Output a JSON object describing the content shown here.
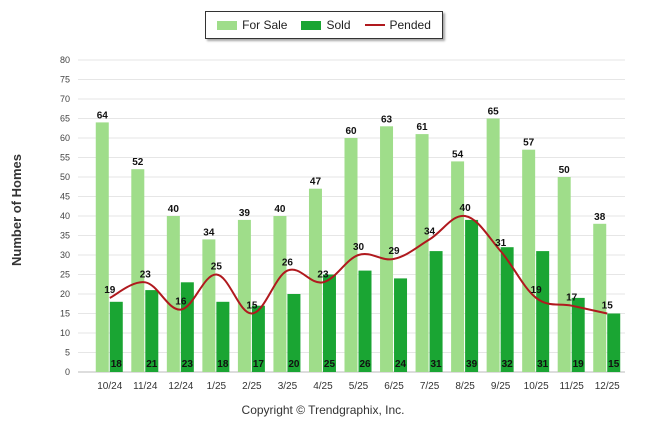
{
  "chart_data": {
    "type": "bar",
    "categories": [
      "10/24",
      "11/24",
      "12/24",
      "1/25",
      "2/25",
      "3/25",
      "4/25",
      "5/25",
      "6/25",
      "7/25",
      "8/25",
      "9/25",
      "10/25",
      "11/25",
      "12/25"
    ],
    "series": [
      {
        "name": "For Sale",
        "type": "bar",
        "color": "#9fdd8a",
        "values": [
          64,
          52,
          40,
          34,
          39,
          40,
          47,
          60,
          63,
          61,
          54,
          65,
          57,
          50,
          38
        ]
      },
      {
        "name": "Sold",
        "type": "bar",
        "color": "#1aa533",
        "values": [
          18,
          21,
          23,
          18,
          17,
          20,
          25,
          26,
          24,
          31,
          39,
          32,
          31,
          19,
          15
        ]
      },
      {
        "name": "Pended",
        "type": "line",
        "color": "#b0191e",
        "values": [
          19,
          23,
          16,
          25,
          15,
          26,
          23,
          30,
          29,
          34,
          40,
          31,
          19,
          17,
          15
        ]
      }
    ],
    "ylabel": "Number of Homes",
    "xlabel": "",
    "ylim": [
      0,
      80
    ],
    "yticks": [
      0,
      5,
      10,
      15,
      20,
      25,
      30,
      35,
      40,
      45,
      50,
      55,
      60,
      65,
      70,
      75,
      80
    ],
    "grid": true,
    "legend": "top-center"
  },
  "legend": {
    "for_sale": "For Sale",
    "sold": "Sold",
    "pended": "Pended"
  },
  "colors": {
    "for_sale": "#9fdd8a",
    "sold": "#1aa533",
    "pended": "#b0191e"
  },
  "footer": {
    "copyright": "Copyright © Trendgraphix, Inc."
  }
}
